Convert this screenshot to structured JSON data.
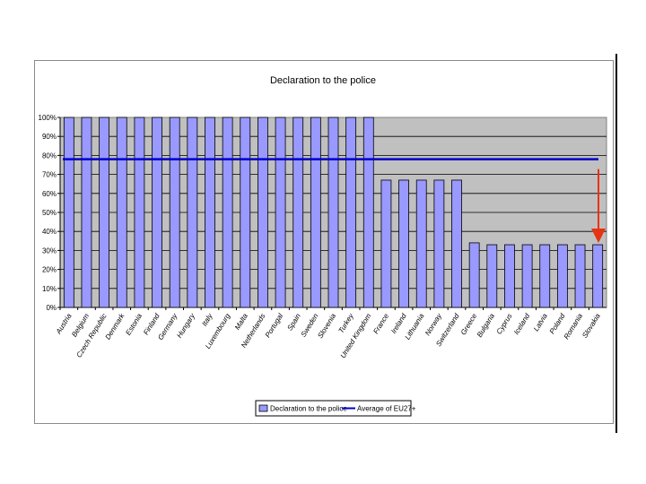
{
  "chart_data": {
    "type": "bar",
    "title": "Declaration to the police",
    "categories": [
      "Austria",
      "Belgium",
      "Czech Republic",
      "Denmark",
      "Estonia",
      "Finland",
      "Germany",
      "Hungary",
      "Italy",
      "Luxembourg",
      "Malta",
      "Netherlands",
      "Portugal",
      "Spain",
      "Sweden",
      "Slovenia",
      "Turkey",
      "United Kingdom",
      "France",
      "Ireland",
      "Lithuania",
      "Norway",
      "Switzerland",
      "Greece",
      "Bulgaria",
      "Cyprus",
      "Iceland",
      "Latvia",
      "Poland",
      "Romania",
      "Slovakia"
    ],
    "series": [
      {
        "name": "Declaration to the police",
        "type": "bar",
        "color": "#9999ff",
        "values": [
          100,
          100,
          100,
          100,
          100,
          100,
          100,
          100,
          100,
          100,
          100,
          100,
          100,
          100,
          100,
          100,
          100,
          100,
          67,
          67,
          67,
          67,
          67,
          34,
          33,
          33,
          33,
          33,
          33,
          33,
          33
        ]
      },
      {
        "name": "Average of EU27+",
        "type": "line",
        "color": "#0000cc",
        "value": 78
      }
    ],
    "ylim": [
      0,
      100
    ],
    "yticks": [
      "0%",
      "10%",
      "20%",
      "30%",
      "40%",
      "50%",
      "60%",
      "70%",
      "80%",
      "90%",
      "100%"
    ],
    "grid": true,
    "plot_background": "#c0c0c0",
    "annotation_arrow_color": "#e63312",
    "legend_position": "bottom"
  }
}
